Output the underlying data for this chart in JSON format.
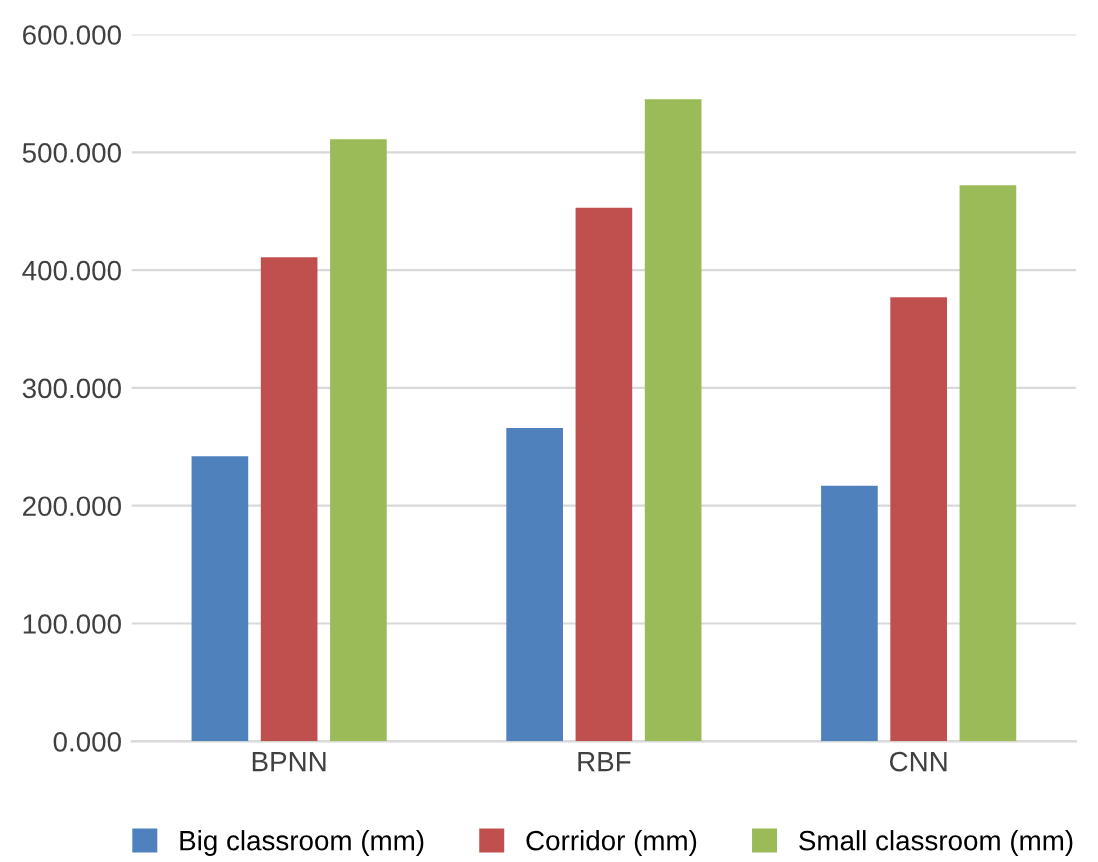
{
  "chart_data": {
    "type": "bar",
    "categories": [
      "BPNN",
      "RBF",
      "CNN"
    ],
    "series": [
      {
        "name": "Big classroom (mm)",
        "color": "#4f81bd",
        "values": [
          242,
          266,
          217
        ]
      },
      {
        "name": "Corridor (mm)",
        "color": "#c0504d",
        "values": [
          411,
          453,
          377
        ]
      },
      {
        "name": "Small classroom (mm)",
        "color": "#9bbb59",
        "values": [
          511,
          545,
          472
        ]
      }
    ],
    "ylim": [
      0,
      600
    ],
    "yticks": [
      {
        "value": 0,
        "label": "0.000"
      },
      {
        "value": 100,
        "label": "100.000"
      },
      {
        "value": 200,
        "label": "200.000"
      },
      {
        "value": 300,
        "label": "300.000"
      },
      {
        "value": 400,
        "label": "400.000"
      },
      {
        "value": 500,
        "label": "500.000"
      },
      {
        "value": 600,
        "label": "600.000"
      }
    ],
    "grid": "y",
    "legend": "bottom"
  }
}
